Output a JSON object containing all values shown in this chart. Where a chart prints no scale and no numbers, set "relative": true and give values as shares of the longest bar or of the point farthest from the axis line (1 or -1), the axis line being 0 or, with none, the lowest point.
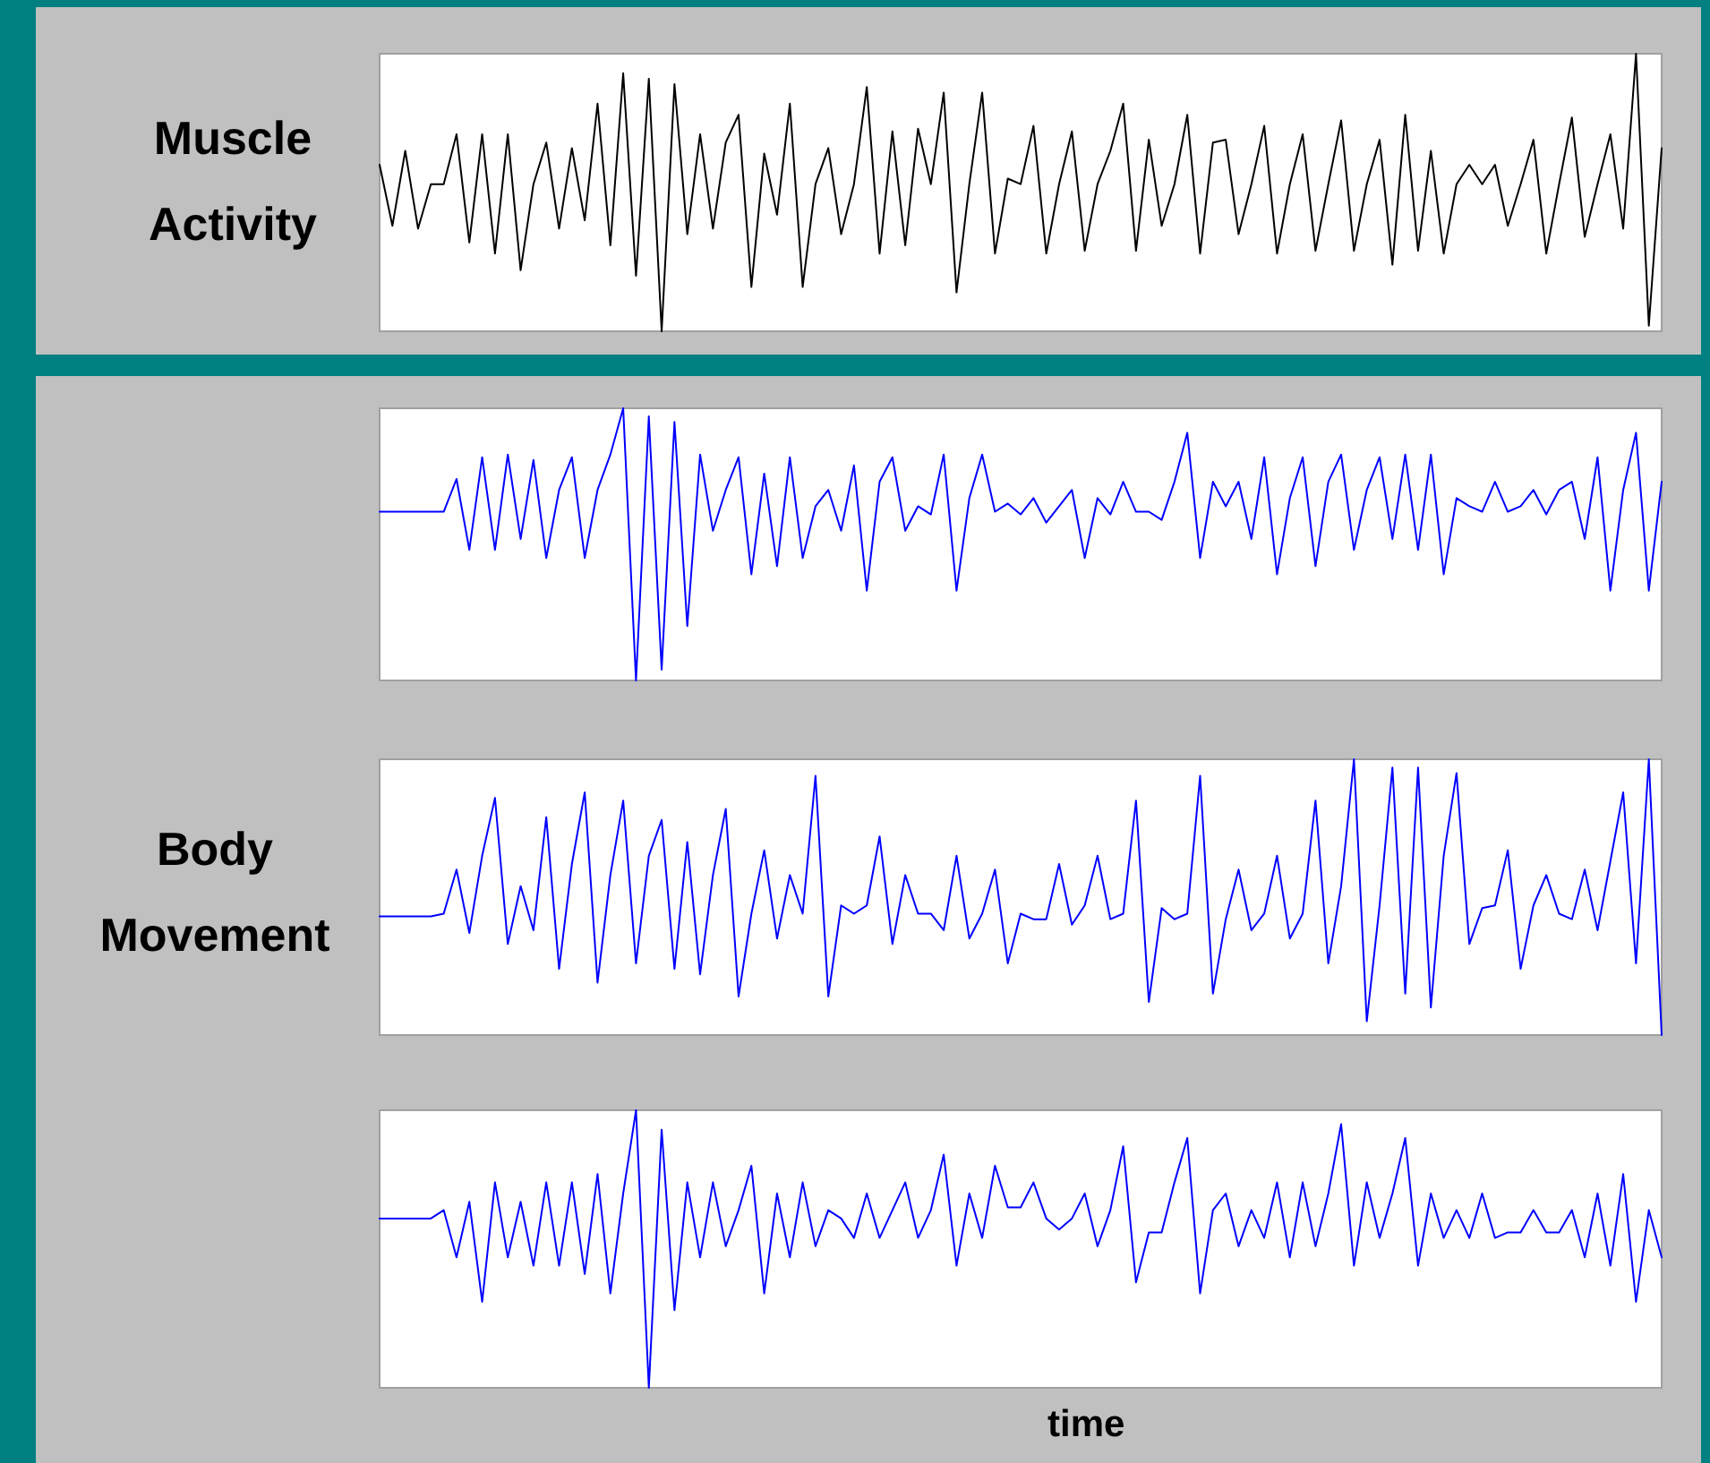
{
  "chart_data": [
    {
      "type": "line",
      "ylabel": "Muscle Activity",
      "relative": true,
      "categories": [
        null,
        null,
        null,
        null,
        null,
        null,
        null,
        null,
        null,
        null,
        null,
        null,
        null,
        null,
        null,
        null,
        null,
        null,
        null,
        null,
        null,
        null,
        null,
        null,
        null,
        null,
        null,
        null,
        null,
        null,
        null,
        null,
        null,
        null,
        null,
        null,
        null,
        null,
        null,
        null,
        null,
        null,
        null,
        null,
        null,
        null,
        null,
        null,
        null,
        null,
        null,
        null,
        null,
        null,
        null,
        null,
        null,
        null,
        null,
        null,
        null,
        null,
        null,
        null,
        null,
        null,
        null,
        null,
        null,
        null,
        null,
        null,
        null,
        null,
        null,
        null,
        null,
        null,
        null,
        null,
        null,
        null,
        null,
        null,
        null,
        null,
        null,
        null,
        null,
        null,
        null,
        null,
        null,
        null,
        null,
        null,
        null,
        null,
        null,
        null,
        null
      ],
      "series": [
        {
          "color": "#000000",
          "values": [
            0.6,
            0.38,
            0.65,
            0.37,
            0.53,
            0.53,
            0.71,
            0.32,
            0.71,
            0.28,
            0.71,
            0.22,
            0.53,
            0.68,
            0.37,
            0.66,
            0.4,
            0.82,
            0.31,
            0.93,
            0.2,
            0.91,
            0.0,
            0.89,
            0.35,
            0.71,
            0.37,
            0.68,
            0.78,
            0.16,
            0.64,
            0.42,
            0.82,
            0.16,
            0.53,
            0.66,
            0.35,
            0.53,
            0.88,
            0.28,
            0.72,
            0.31,
            0.73,
            0.53,
            0.86,
            0.14,
            0.53,
            0.86,
            0.28,
            0.55,
            0.53,
            0.74,
            0.28,
            0.53,
            0.72,
            0.29,
            0.53,
            0.65,
            0.82,
            0.29,
            0.69,
            0.38,
            0.53,
            0.78,
            0.28,
            0.68,
            0.69,
            0.35,
            0.53,
            0.74,
            0.28,
            0.53,
            0.71,
            0.29,
            0.53,
            0.76,
            0.29,
            0.53,
            0.69,
            0.24,
            0.78,
            0.29,
            0.65,
            0.28,
            0.53,
            0.6,
            0.53,
            0.6,
            0.38,
            0.53,
            0.69,
            0.28,
            0.53,
            0.77,
            0.34,
            0.53,
            0.71,
            0.37,
            1.0,
            0.02,
            0.66
          ]
        }
      ]
    },
    {
      "type": "line",
      "relative": true,
      "categories": [
        null,
        null,
        null,
        null,
        null,
        null,
        null,
        null,
        null,
        null,
        null,
        null,
        null,
        null,
        null,
        null,
        null,
        null,
        null,
        null,
        null,
        null,
        null,
        null,
        null,
        null,
        null,
        null,
        null,
        null,
        null,
        null,
        null,
        null,
        null,
        null,
        null,
        null,
        null,
        null,
        null,
        null,
        null,
        null,
        null,
        null,
        null,
        null,
        null,
        null,
        null,
        null,
        null,
        null,
        null,
        null,
        null,
        null,
        null,
        null,
        null,
        null,
        null,
        null,
        null,
        null,
        null,
        null,
        null,
        null,
        null,
        null,
        null,
        null,
        null,
        null,
        null,
        null,
        null,
        null,
        null,
        null,
        null,
        null,
        null,
        null,
        null,
        null,
        null,
        null,
        null,
        null,
        null,
        null,
        null,
        null,
        null,
        null,
        null,
        null,
        null
      ],
      "series": [
        {
          "color": "#0000ff",
          "values": [
            0.62,
            0.62,
            0.62,
            0.62,
            0.62,
            0.62,
            0.74,
            0.48,
            0.82,
            0.48,
            0.83,
            0.52,
            0.81,
            0.45,
            0.7,
            0.82,
            0.45,
            0.7,
            0.83,
            1.0,
            0.0,
            0.97,
            0.04,
            0.95,
            0.2,
            0.83,
            0.55,
            0.7,
            0.82,
            0.39,
            0.76,
            0.42,
            0.82,
            0.45,
            0.64,
            0.7,
            0.55,
            0.79,
            0.33,
            0.73,
            0.82,
            0.55,
            0.64,
            0.61,
            0.83,
            0.33,
            0.67,
            0.83,
            0.62,
            0.65,
            0.61,
            0.67,
            0.58,
            0.64,
            0.7,
            0.45,
            0.67,
            0.61,
            0.73,
            0.62,
            0.62,
            0.59,
            0.73,
            0.91,
            0.45,
            0.73,
            0.64,
            0.73,
            0.52,
            0.82,
            0.39,
            0.67,
            0.82,
            0.42,
            0.73,
            0.83,
            0.48,
            0.7,
            0.82,
            0.52,
            0.83,
            0.48,
            0.83,
            0.39,
            0.67,
            0.64,
            0.62,
            0.73,
            0.62,
            0.64,
            0.7,
            0.61,
            0.7,
            0.73,
            0.52,
            0.82,
            0.33,
            0.7,
            0.91,
            0.33,
            0.73
          ]
        }
      ]
    },
    {
      "type": "line",
      "ylabel": "Body Movement",
      "relative": true,
      "categories": [
        null,
        null,
        null,
        null,
        null,
        null,
        null,
        null,
        null,
        null,
        null,
        null,
        null,
        null,
        null,
        null,
        null,
        null,
        null,
        null,
        null,
        null,
        null,
        null,
        null,
        null,
        null,
        null,
        null,
        null,
        null,
        null,
        null,
        null,
        null,
        null,
        null,
        null,
        null,
        null,
        null,
        null,
        null,
        null,
        null,
        null,
        null,
        null,
        null,
        null,
        null,
        null,
        null,
        null,
        null,
        null,
        null,
        null,
        null,
        null,
        null,
        null,
        null,
        null,
        null,
        null,
        null,
        null,
        null,
        null,
        null,
        null,
        null,
        null,
        null,
        null,
        null,
        null,
        null,
        null,
        null,
        null,
        null,
        null,
        null,
        null,
        null,
        null,
        null,
        null,
        null,
        null,
        null,
        null,
        null,
        null,
        null,
        null,
        null,
        null,
        null
      ],
      "series": [
        {
          "color": "#0000ff",
          "values": [
            0.43,
            0.43,
            0.43,
            0.43,
            0.43,
            0.44,
            0.6,
            0.37,
            0.65,
            0.86,
            0.33,
            0.54,
            0.38,
            0.79,
            0.24,
            0.62,
            0.88,
            0.19,
            0.58,
            0.85,
            0.26,
            0.65,
            0.78,
            0.24,
            0.7,
            0.22,
            0.58,
            0.82,
            0.14,
            0.44,
            0.67,
            0.35,
            0.58,
            0.44,
            0.94,
            0.14,
            0.47,
            0.44,
            0.47,
            0.72,
            0.33,
            0.58,
            0.44,
            0.44,
            0.38,
            0.65,
            0.35,
            0.44,
            0.6,
            0.26,
            0.44,
            0.42,
            0.42,
            0.62,
            0.4,
            0.47,
            0.65,
            0.42,
            0.44,
            0.85,
            0.12,
            0.46,
            0.42,
            0.44,
            0.94,
            0.15,
            0.42,
            0.6,
            0.38,
            0.44,
            0.65,
            0.35,
            0.44,
            0.85,
            0.26,
            0.54,
            1.0,
            0.05,
            0.47,
            0.97,
            0.15,
            0.97,
            0.1,
            0.65,
            0.95,
            0.33,
            0.46,
            0.47,
            0.67,
            0.24,
            0.47,
            0.58,
            0.44,
            0.42,
            0.6,
            0.38,
            0.63,
            0.88,
            0.26,
            1.0,
            0.0
          ]
        }
      ]
    },
    {
      "type": "line",
      "xlabel": "time",
      "relative": true,
      "categories": [
        null,
        null,
        null,
        null,
        null,
        null,
        null,
        null,
        null,
        null,
        null,
        null,
        null,
        null,
        null,
        null,
        null,
        null,
        null,
        null,
        null,
        null,
        null,
        null,
        null,
        null,
        null,
        null,
        null,
        null,
        null,
        null,
        null,
        null,
        null,
        null,
        null,
        null,
        null,
        null,
        null,
        null,
        null,
        null,
        null,
        null,
        null,
        null,
        null,
        null,
        null,
        null,
        null,
        null,
        null,
        null,
        null,
        null,
        null,
        null,
        null,
        null,
        null,
        null,
        null,
        null,
        null,
        null,
        null,
        null,
        null,
        null,
        null,
        null,
        null,
        null,
        null,
        null,
        null,
        null,
        null,
        null,
        null,
        null,
        null,
        null,
        null,
        null,
        null,
        null,
        null,
        null,
        null,
        null,
        null,
        null,
        null,
        null,
        null,
        null,
        null
      ],
      "series": [
        {
          "color": "#0000ff",
          "values": [
            0.61,
            0.61,
            0.61,
            0.61,
            0.61,
            0.64,
            0.47,
            0.67,
            0.31,
            0.74,
            0.47,
            0.67,
            0.44,
            0.74,
            0.44,
            0.74,
            0.41,
            0.77,
            0.34,
            0.7,
            1.0,
            0.0,
            0.93,
            0.28,
            0.74,
            0.47,
            0.74,
            0.51,
            0.64,
            0.8,
            0.34,
            0.7,
            0.47,
            0.74,
            0.51,
            0.64,
            0.61,
            0.54,
            0.7,
            0.54,
            0.64,
            0.74,
            0.54,
            0.64,
            0.84,
            0.44,
            0.7,
            0.54,
            0.8,
            0.65,
            0.65,
            0.74,
            0.61,
            0.57,
            0.61,
            0.7,
            0.51,
            0.64,
            0.87,
            0.38,
            0.56,
            0.56,
            0.74,
            0.9,
            0.34,
            0.64,
            0.7,
            0.51,
            0.64,
            0.54,
            0.74,
            0.47,
            0.74,
            0.51,
            0.7,
            0.95,
            0.44,
            0.74,
            0.54,
            0.7,
            0.9,
            0.44,
            0.7,
            0.54,
            0.64,
            0.54,
            0.7,
            0.54,
            0.56,
            0.56,
            0.64,
            0.56,
            0.56,
            0.64,
            0.47,
            0.7,
            0.44,
            0.77,
            0.31,
            0.64,
            0.47
          ]
        }
      ]
    }
  ]
}
